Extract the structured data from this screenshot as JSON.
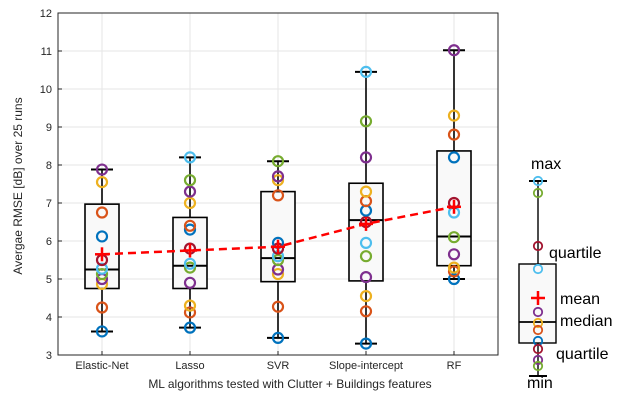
{
  "chart_data": {
    "type": "box",
    "title": "",
    "xlabel": "ML algorithms tested with Clutter + Buildings features",
    "ylabel": "Avergae RMSE [dB] over 25 runs",
    "ylim": [
      3,
      12
    ],
    "yticks": [
      3,
      4,
      5,
      6,
      7,
      8,
      9,
      10,
      11,
      12
    ],
    "grid": true,
    "categories": [
      "Elastic-Net",
      "Lasso",
      "SVR",
      "Slope-intercept",
      "RF"
    ],
    "boxes": [
      {
        "min": 3.62,
        "q1": 4.75,
        "median": 5.25,
        "q3": 6.97,
        "max": 7.88,
        "mean": 5.65,
        "runs": [
          3.62,
          4.25,
          4.87,
          5.0,
          5.13,
          5.27,
          5.5,
          6.12,
          6.75,
          7.55,
          7.88
        ]
      },
      {
        "min": 3.72,
        "q1": 4.75,
        "median": 5.35,
        "q3": 6.62,
        "max": 8.2,
        "mean": 5.75,
        "runs": [
          3.72,
          4.12,
          4.3,
          4.9,
          5.3,
          5.4,
          5.8,
          6.3,
          6.4,
          7.0,
          7.3,
          7.6,
          8.2
        ]
      },
      {
        "min": 3.45,
        "q1": 4.93,
        "median": 5.55,
        "q3": 7.3,
        "max": 8.1,
        "mean": 5.85,
        "runs": [
          3.45,
          4.27,
          5.13,
          5.25,
          5.5,
          5.6,
          5.8,
          5.95,
          7.2,
          7.6,
          7.7,
          8.1
        ]
      },
      {
        "min": 3.3,
        "q1": 4.95,
        "median": 6.55,
        "q3": 7.52,
        "max": 10.45,
        "mean": 6.45,
        "runs": [
          3.3,
          4.15,
          4.55,
          5.05,
          5.6,
          5.95,
          6.5,
          6.8,
          7.05,
          7.3,
          8.2,
          9.15,
          10.45
        ]
      },
      {
        "min": 5.0,
        "q1": 5.35,
        "median": 6.12,
        "q3": 8.37,
        "max": 11.02,
        "mean": 6.9,
        "runs": [
          5.0,
          5.2,
          5.3,
          5.65,
          6.1,
          6.75,
          7.0,
          8.2,
          8.8,
          9.3,
          11.02
        ]
      }
    ],
    "mean_line_color": "#ff0000",
    "run_marker_colors": [
      "#0072bd",
      "#d95319",
      "#edb120",
      "#7e2f8e",
      "#77ac30",
      "#4dbeee",
      "#a2142f"
    ],
    "box_fill": "#f9f9f9",
    "grid_color": "#e6e6e6"
  },
  "legend": {
    "labels": {
      "max": "max",
      "quartile_upper": "quartile",
      "mean": "mean",
      "median": "median",
      "quartile_lower": "quartile",
      "min": "min"
    },
    "mean_color": "#ff0000"
  }
}
